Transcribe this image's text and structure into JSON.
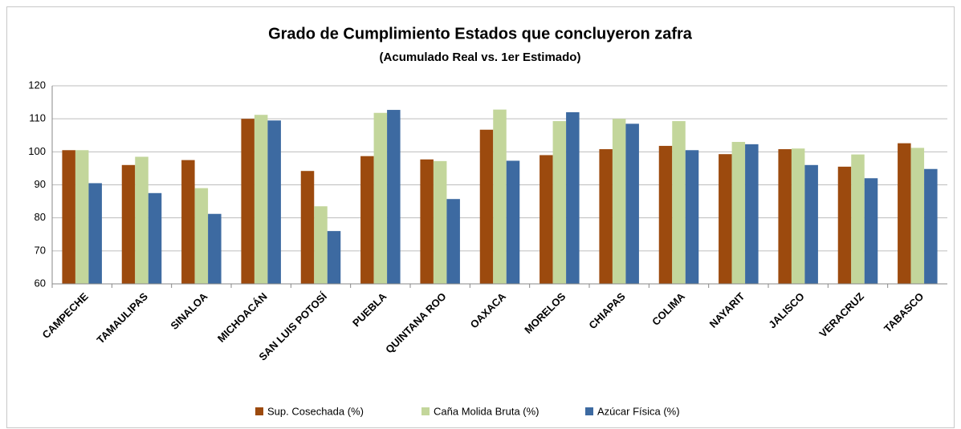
{
  "chart_data": {
    "type": "bar",
    "title": "Grado de Cumplimiento Estados que concluyeron zafra",
    "subtitle": "(Acumulado Real vs. 1er Estimado)",
    "categories": [
      "CAMPECHE",
      "TAMAULIPAS",
      "SINALOA",
      "MICHOACÁN",
      "SAN LUIS POTOSÍ",
      "PUEBLA",
      "QUINTANA ROO",
      "OAXACA",
      "MORELOS",
      "CHIAPAS",
      "COLIMA",
      "NAYARIT",
      "JALISCO",
      "VERACRUZ",
      "TABASCO"
    ],
    "series": [
      {
        "name": "Sup. Cosechada (%)",
        "color": "#9c4a0e",
        "values": [
          100.5,
          96,
          97.5,
          110,
          94.2,
          98.7,
          97.7,
          106.7,
          99,
          100.8,
          101.8,
          99.3,
          100.8,
          95.5,
          102.6
        ]
      },
      {
        "name": "Caña Molida Bruta (%)",
        "color": "#c3d69b",
        "values": [
          100.5,
          98.5,
          89,
          111.2,
          83.5,
          111.8,
          97.2,
          112.8,
          109.3,
          110,
          109.3,
          103,
          101,
          99.2,
          101.2
        ]
      },
      {
        "name": "Azúcar Física (%)",
        "color": "#3d6aa1",
        "values": [
          90.5,
          87.5,
          81.2,
          109.5,
          76,
          112.7,
          85.7,
          97.3,
          112,
          108.5,
          100.5,
          102.3,
          96,
          92,
          94.8
        ]
      }
    ],
    "ylim": [
      60,
      120
    ],
    "yticks": [
      60,
      70,
      80,
      90,
      100,
      110,
      120
    ],
    "grid": true,
    "legend": "bottom"
  }
}
